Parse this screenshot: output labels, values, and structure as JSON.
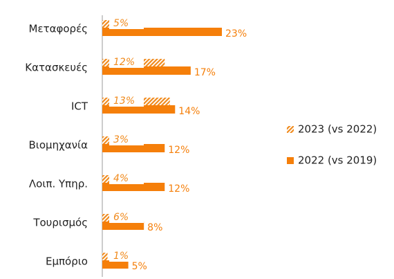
{
  "chart_data": {
    "type": "bar",
    "orientation": "horizontal",
    "categories": [
      "Μεταφορές",
      "Κατασκευές",
      "ICT",
      "Βιομηχανία",
      "Λοιπ. Υπηρ.",
      "Τουρισμός",
      "Εμπόριο"
    ],
    "series": [
      {
        "name": "2023 (vs 2022)",
        "color": "#f08a1c",
        "pattern": "hatch",
        "values": [
          5,
          12,
          13,
          3,
          4,
          6,
          1
        ],
        "value_labels": [
          "5%",
          "12%",
          "13%",
          "3%",
          "4%",
          "6%",
          "1%"
        ]
      },
      {
        "name": "2022 (vs 2019)",
        "color": "#f57f0a",
        "pattern": "solid",
        "values": [
          23,
          17,
          14,
          12,
          12,
          8,
          5
        ],
        "value_labels": [
          "23%",
          "17%",
          "14%",
          "12%",
          "12%",
          "8%",
          "5%"
        ]
      }
    ],
    "legend": "right"
  }
}
